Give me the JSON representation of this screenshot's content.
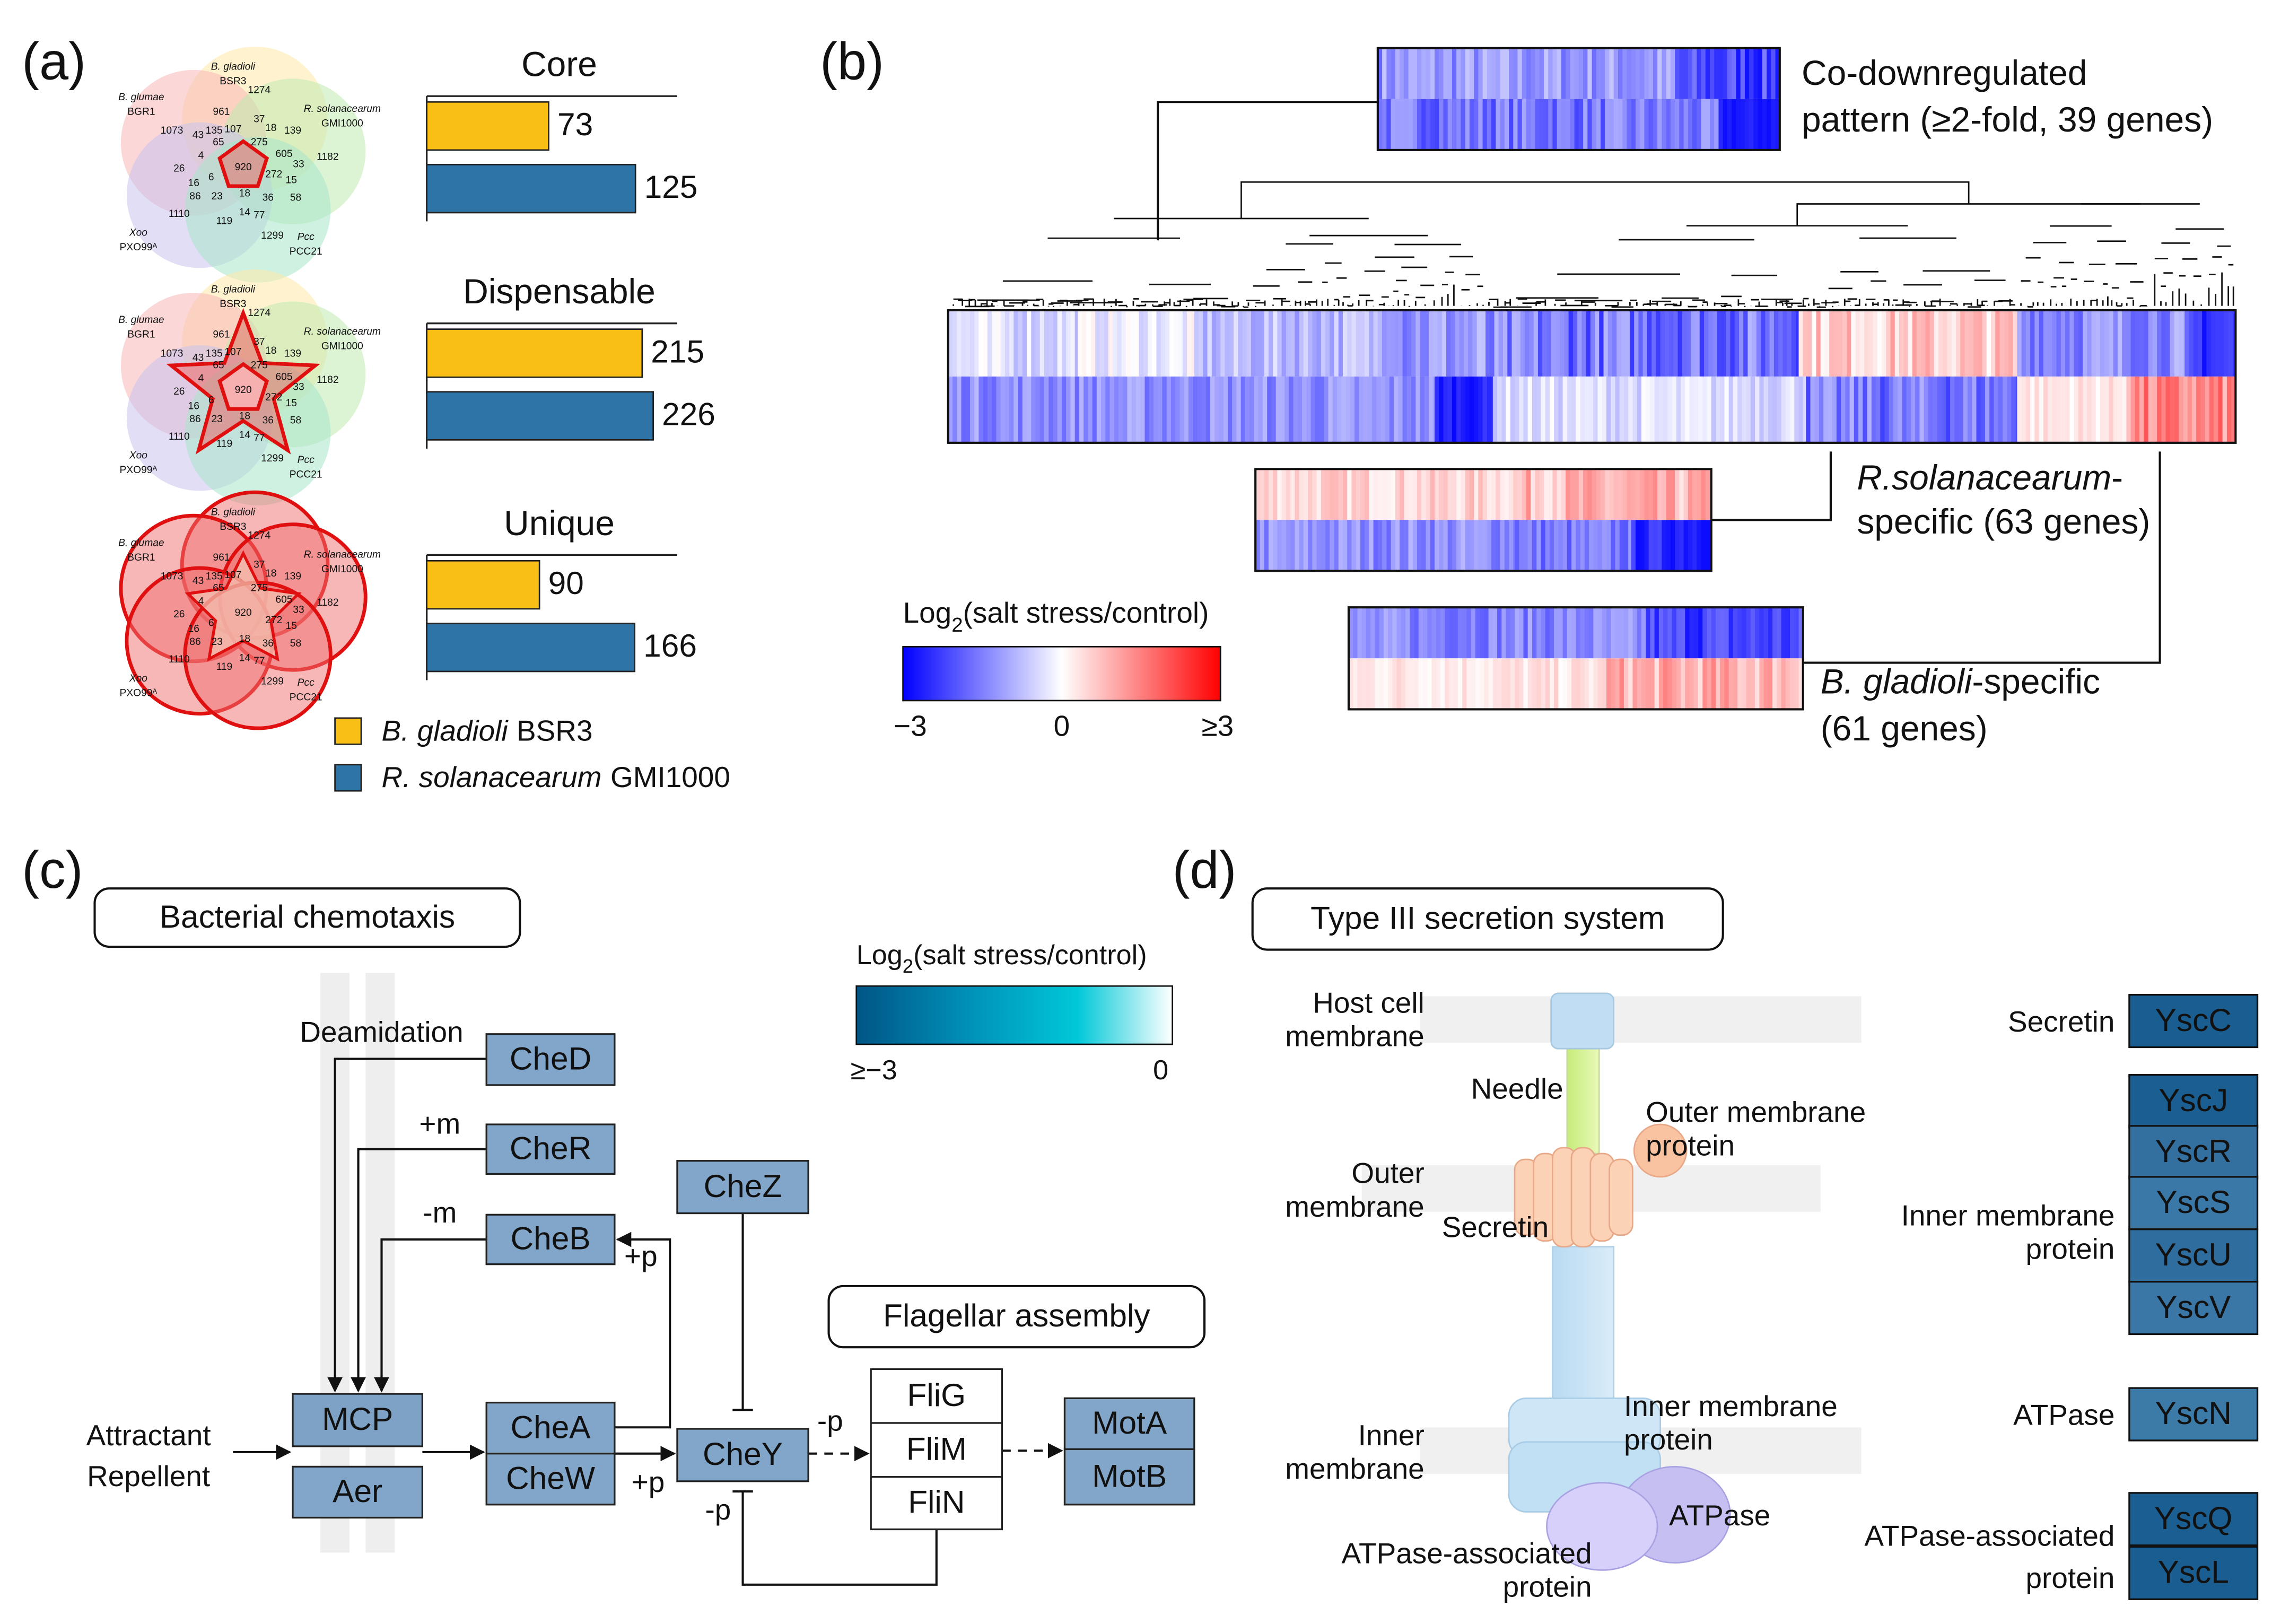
{
  "panel_labels": [
    "(a)",
    "(b)",
    "(c)",
    "(d)"
  ],
  "legend": [
    {
      "name": "B. gladioli",
      "strain": "BSR3",
      "color": "#f9bf14"
    },
    {
      "name": "R. solanacearum",
      "strain": "GMI1000",
      "color": "#2e74a6"
    }
  ],
  "chart_data": [
    {
      "type": "bar",
      "orientation": "horizontal",
      "title": "Core",
      "values": [
        73,
        125
      ],
      "xlim": [
        0,
        150
      ]
    },
    {
      "type": "bar",
      "orientation": "horizontal",
      "title": "Dispensable",
      "values": [
        215,
        226
      ],
      "xlim": [
        0,
        250
      ]
    },
    {
      "type": "bar",
      "orientation": "horizontal",
      "title": "Unique",
      "values": [
        90,
        166
      ],
      "xlim": [
        0,
        200
      ]
    }
  ],
  "venn": {
    "sets": [
      {
        "name": "B. gladioli",
        "strain": "BSR3"
      },
      {
        "name": "B. glumae",
        "strain": "BGR1"
      },
      {
        "name": "R. solanacearum",
        "strain": "GMI1000"
      },
      {
        "name": "Xoo",
        "strain": "PXO99ᴬ"
      },
      {
        "name": "Pcc",
        "strain": "PCC21"
      }
    ],
    "counts": [
      1274,
      961,
      37,
      18,
      139,
      1073,
      43,
      135,
      107,
      605,
      1182,
      4,
      65,
      275,
      33,
      26,
      16,
      6,
      920,
      272,
      15,
      86,
      23,
      18,
      36,
      58,
      119,
      14,
      77,
      1110,
      1299
    ]
  },
  "heatmap": {
    "colorbar": {
      "title": [
        "Log",
        "2",
        "(salt stress/control)"
      ],
      "labels": [
        "−3",
        "0",
        "≥3"
      ]
    },
    "clusters": [
      {
        "label": [
          "Co-downregulated",
          "pattern (≥2-fold, 39 genes)"
        ]
      },
      {
        "label": [
          "R.solanacearum",
          "-",
          "specific (63 genes)"
        ]
      },
      {
        "label": [
          "B. gladioli",
          "-specific",
          "(61 genes)"
        ]
      }
    ]
  },
  "chemotaxis": {
    "title": "Bacterial chemotaxis",
    "subtitle": "Flagellar assembly",
    "colorbar": {
      "title": [
        "Log",
        "2",
        "(salt stress/control)"
      ],
      "labels": [
        "≥−3",
        "0"
      ]
    },
    "genes": [
      {
        "name": "CheD",
        "color": "#82a6c9"
      },
      {
        "name": "CheR",
        "color": "#82a6c9"
      },
      {
        "name": "CheB",
        "color": "#82a6c9"
      },
      {
        "name": "CheZ",
        "color": "#82a6c9"
      },
      {
        "name": "MCP",
        "color": "#7ea2c6"
      },
      {
        "name": "Aer",
        "color": "#82a6c9"
      },
      {
        "name": "CheA",
        "color": "#82a6c9"
      },
      {
        "name": "CheW",
        "color": "#82a6c9"
      },
      {
        "name": "CheY",
        "color": "#82a6c9"
      },
      {
        "name": "MotA",
        "color": "#82a6c9"
      },
      {
        "name": "MotB",
        "color": "#82a6c9"
      }
    ],
    "flagellar": [
      "FliG",
      "FliM",
      "FliN"
    ],
    "texts": [
      "Deamidation",
      "+m",
      "-m",
      "+p",
      "Attractant",
      "Repellent",
      "-p",
      "+p",
      "-p"
    ]
  },
  "t3ss": {
    "title": "Type III secretion system",
    "diagram_labels": [
      "Host cell",
      "membrane",
      "Needle",
      "Outer membrane",
      "protein",
      "Outer",
      "membrane",
      "Secretin",
      "Inner membrane",
      "protein",
      "Inner",
      "membrane",
      "ATPase",
      "ATPase-associated",
      "protein"
    ],
    "groups": [
      {
        "label": [
          "Secretin"
        ],
        "genes": [
          {
            "name": "YscC",
            "color": "#1a5e91"
          }
        ]
      },
      {
        "label": [
          "Inner membrane",
          "protein"
        ],
        "genes": [
          {
            "name": "YscJ",
            "color": "#1b5e91"
          },
          {
            "name": "YscR",
            "color": "#3370a0"
          },
          {
            "name": "YscS",
            "color": "#3a78a8"
          },
          {
            "name": "YscU",
            "color": "#2e6d9e"
          },
          {
            "name": "YscV",
            "color": "#3a76a6"
          }
        ]
      },
      {
        "label": [
          "ATPase"
        ],
        "genes": [
          {
            "name": "YscN",
            "color": "#3c7aa8"
          }
        ]
      },
      {
        "label": [
          "ATPase-associated",
          "protein"
        ],
        "genes": [
          {
            "name": "YscQ",
            "color": "#1b5e91"
          },
          {
            "name": "YscL",
            "color": "#1a5e91"
          }
        ]
      }
    ]
  }
}
